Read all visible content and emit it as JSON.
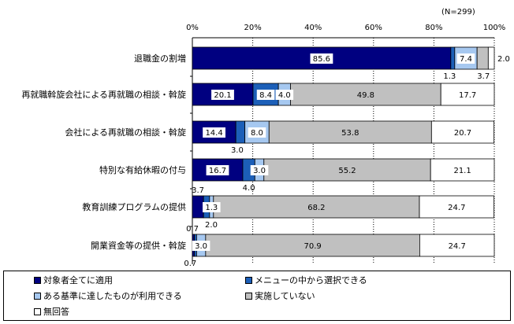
{
  "note": "(N=299)",
  "chart_data": {
    "type": "bar",
    "orientation": "horizontal",
    "stacked": true,
    "xlim": [
      0,
      100
    ],
    "x_ticks": [
      "0%",
      "20%",
      "40%",
      "60%",
      "80%",
      "100%"
    ],
    "grid": true,
    "legend_position": "bottom",
    "categories": [
      "退職金の割増",
      "再就職斡旋会社による再就職の相談・斡旋",
      "会社による再就職の相談・斡旋",
      "特別な有給休暇の付与",
      "教育訓練プログラムの提供",
      "開業資金等の提供・斡旋"
    ],
    "series": [
      {
        "name": "対象者全てに適用",
        "color": "#000080",
        "values": [
          85.6,
          20.1,
          14.4,
          16.7,
          3.7,
          0.7
        ]
      },
      {
        "name": "メニューの中から選択できる",
        "color": "#1c5fb8",
        "values": [
          1.3,
          8.4,
          3.0,
          4.0,
          2.0,
          0.7
        ]
      },
      {
        "name": "ある基準に達したものが利用できる",
        "color": "#a6c8f0",
        "values": [
          7.4,
          4.0,
          8.0,
          3.0,
          1.3,
          3.0
        ]
      },
      {
        "name": "実施していない",
        "color": "#c0c0c0",
        "values": [
          3.7,
          49.8,
          53.8,
          55.2,
          68.2,
          70.9
        ]
      },
      {
        "name": "無回答",
        "color": "#ffffff",
        "values": [
          2.0,
          17.7,
          20.7,
          21.1,
          24.7,
          24.7
        ]
      }
    ],
    "value_labels": [
      [
        "85.6",
        "1.3",
        "7.4",
        "3.7",
        "2.0"
      ],
      [
        "20.1",
        "8.4",
        "4.0",
        "49.8",
        "17.7"
      ],
      [
        "14.4",
        "3.0",
        "8.0",
        "53.8",
        "20.7"
      ],
      [
        "16.7",
        "4.0",
        "3.0",
        "55.2",
        "21.1"
      ],
      [
        "3.7",
        "2.0",
        "1.3",
        "68.2",
        "24.7"
      ],
      [
        "0.7",
        "0.7",
        "3.0",
        "70.9",
        "24.7"
      ]
    ]
  }
}
